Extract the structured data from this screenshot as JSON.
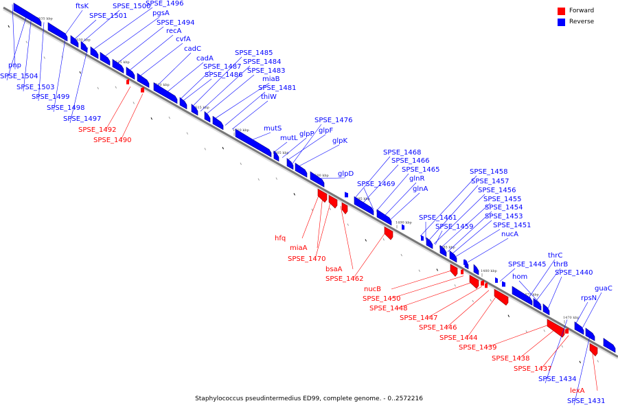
{
  "caption": "Staphylococcus pseudintermedius ED99, complete genome. - 0..2572216",
  "legend": [
    {
      "label": "Forward",
      "color": "#ff0000"
    },
    {
      "label": "Reverse",
      "color": "#0000ff"
    }
  ],
  "colors": {
    "forward": "#ff0000",
    "reverse": "#0000ff",
    "backbone": "#777777"
  },
  "ticks": [
    "1535 kbp",
    "1530 kbp",
    "1525 kbp",
    "1520 kbp",
    "1515 kbp",
    "1510 kbp",
    "1505 kbp",
    "1500 kbp",
    "1495 kbp",
    "1490 kbp",
    "1485 kbp",
    "1480 kbp",
    "1475 kbp",
    "1470 kbp"
  ],
  "reverse_labels": [
    "pnp",
    "SPSE_1504",
    "SPSE_1503",
    "SPSE_1499",
    "SPSE_1498",
    "SPSE_1497",
    "ftsK",
    "SPSE_1501",
    "SPSE_1500",
    "SPSE_1496",
    "pgsA",
    "SPSE_1494",
    "recA",
    "cvfA",
    "cadC",
    "cadA",
    "SPSE_1487",
    "SPSE_1486",
    "SPSE_1485",
    "SPSE_1484",
    "SPSE_1483",
    "miaB",
    "SPSE_1481",
    "thiW",
    "mutS",
    "mutL",
    "glpP",
    "glpF",
    "SPSE_1476",
    "glpK",
    "glpD",
    "SPSE_1468",
    "SPSE_1466",
    "SPSE_1465",
    "SPSE_1469",
    "glnR",
    "glnA",
    "SPSE_1458",
    "SPSE_1457",
    "SPSE_1456",
    "SPSE_1455",
    "SPSE_1454",
    "SPSE_1461",
    "SPSE_1459",
    "SPSE_1453",
    "SPSE_1451",
    "nucA",
    "thrC",
    "SPSE_1445",
    "thrB",
    "hom",
    "SPSE_1440",
    "guaC",
    "rpsN",
    "SPSE_1434",
    "SPSE_1431"
  ],
  "forward_labels": [
    "SPSE_1492",
    "SPSE_1490",
    "hfq",
    "miaA",
    "SPSE_1470",
    "bsaA",
    "SPSE_1462",
    "nucB",
    "SPSE_1450",
    "SPSE_1448",
    "SPSE_1447",
    "SPSE_1446",
    "SPSE_1444",
    "SPSE_1439",
    "SPSE_1438",
    "SPSE_1437",
    "lexA"
  ]
}
